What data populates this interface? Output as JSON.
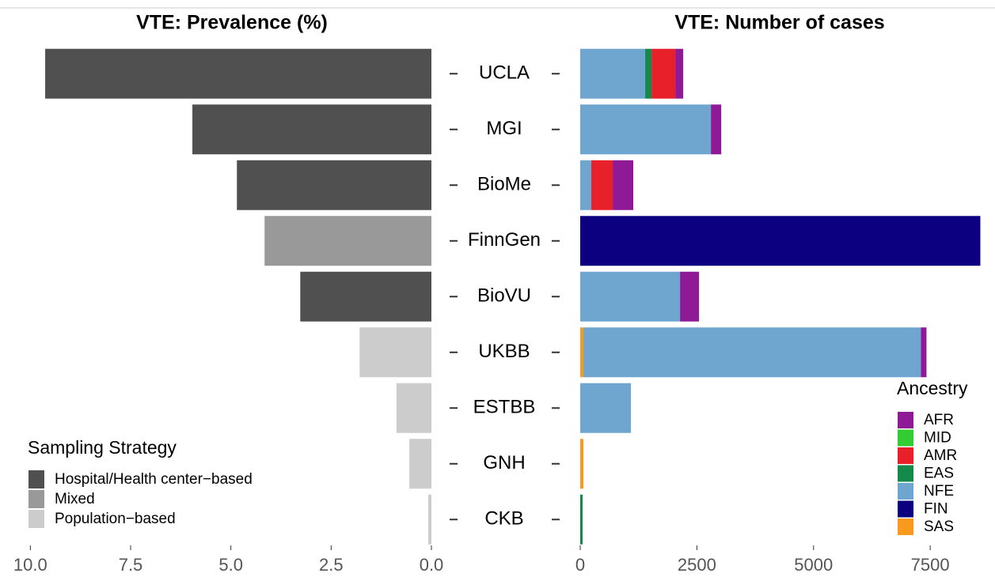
{
  "chart_data": [
    {
      "type": "hbar",
      "title": "VTE: Prevalence (%)",
      "categories": [
        "UCLA",
        "MGI",
        "BioMe",
        "FinnGen",
        "BioVU",
        "UKBB",
        "ESTBB",
        "GNH",
        "CKB"
      ],
      "values": [
        9.63,
        5.96,
        4.85,
        4.16,
        3.27,
        1.79,
        0.87,
        0.55,
        0.08
      ],
      "bar_group": [
        0,
        0,
        0,
        1,
        0,
        2,
        2,
        2,
        2
      ],
      "legend": {
        "title": "Sampling Strategy",
        "items": [
          {
            "name": "Hospital/Health center−based",
            "color": "#505050"
          },
          {
            "name": "Mixed",
            "color": "#999999"
          },
          {
            "name": "Population−based",
            "color": "#cccccc"
          }
        ]
      },
      "xlim": [
        0,
        10.5
      ],
      "x_reversed": true,
      "xticks": [
        {
          "value": 10,
          "label": "10.0"
        },
        7.5,
        {
          "value": 5,
          "label": "5.0"
        },
        2.5,
        {
          "value": 0,
          "label": "0.0"
        }
      ]
    },
    {
      "type": "stacked_hbar",
      "title": "VTE: Number of cases",
      "legend_title": "Ancestry",
      "series": [
        {
          "name": "AFR",
          "color": "#8e1a96",
          "values": [
            170,
            221,
            441,
            0,
            407,
            119,
            0,
            0,
            0
          ]
        },
        {
          "name": "MID",
          "color": "#33cc33",
          "values": [
            0,
            0,
            0,
            0,
            0,
            0,
            0,
            0,
            0
          ]
        },
        {
          "name": "AMR",
          "color": "#e8202a",
          "values": [
            509,
            0,
            458,
            0,
            0,
            0,
            0,
            0,
            0
          ]
        },
        {
          "name": "EAS",
          "color": "#148a4a",
          "values": [
            136,
            0,
            0,
            0,
            0,
            0,
            0,
            0,
            51
          ]
        },
        {
          "name": "NFE",
          "color": "#6ea6d0",
          "values": [
            1392,
            2801,
            238,
            0,
            2139,
            7233,
            1087,
            0,
            0
          ]
        },
        {
          "name": "FIN",
          "color": "#0c0080",
          "values": [
            0,
            0,
            0,
            8574,
            0,
            0,
            0,
            0,
            0
          ]
        },
        {
          "name": "SAS",
          "color": "#f79a1d",
          "values": [
            0,
            0,
            0,
            0,
            0,
            68,
            0,
            68,
            0
          ]
        }
      ],
      "xlim": [
        0,
        8600
      ],
      "xticks": [
        0,
        2500,
        5000,
        7500
      ]
    }
  ]
}
